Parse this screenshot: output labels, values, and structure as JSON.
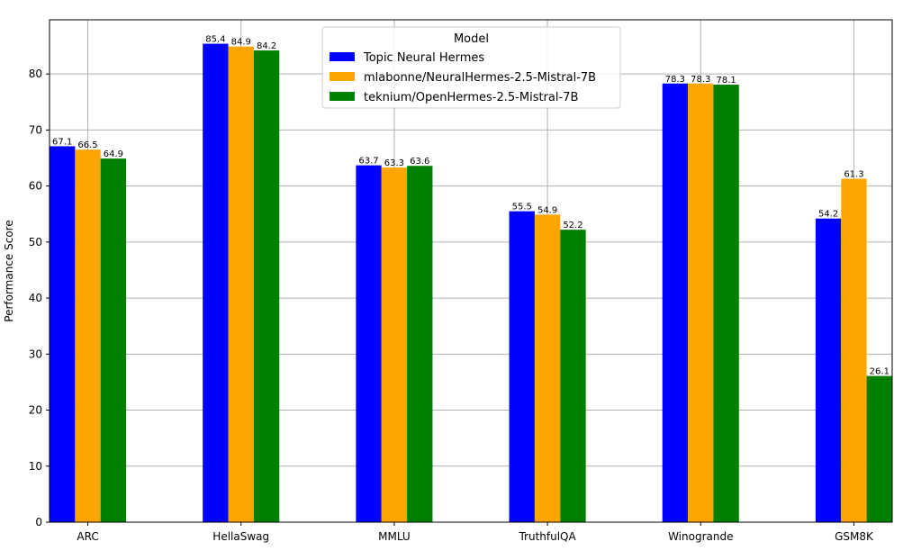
{
  "chart_data": {
    "type": "bar",
    "title": "",
    "xlabel": "",
    "ylabel": "Performance Score",
    "categories": [
      "ARC",
      "HellaSwag",
      "MMLU",
      "TruthfulQA",
      "Winogrande",
      "GSM8K"
    ],
    "series": [
      {
        "name": "Topic Neural Hermes",
        "color": "#0000ff",
        "values": [
          67.1,
          85.4,
          63.7,
          55.5,
          78.3,
          54.2
        ]
      },
      {
        "name": "mlabonne/NeuralHermes-2.5-Mistral-7B",
        "color": "#ffa500",
        "values": [
          66.5,
          84.9,
          63.3,
          54.9,
          78.3,
          61.3
        ]
      },
      {
        "name": "teknium/OpenHermes-2.5-Mistral-7B",
        "color": "#008000",
        "values": [
          64.9,
          84.2,
          63.6,
          52.2,
          78.1,
          26.1
        ]
      }
    ],
    "ylim": [
      0,
      89.67
    ],
    "yticks": [
      0,
      10,
      20,
      30,
      40,
      50,
      60,
      70,
      80
    ],
    "grid": true,
    "legend": {
      "title": "Model",
      "position": "top-center"
    }
  }
}
